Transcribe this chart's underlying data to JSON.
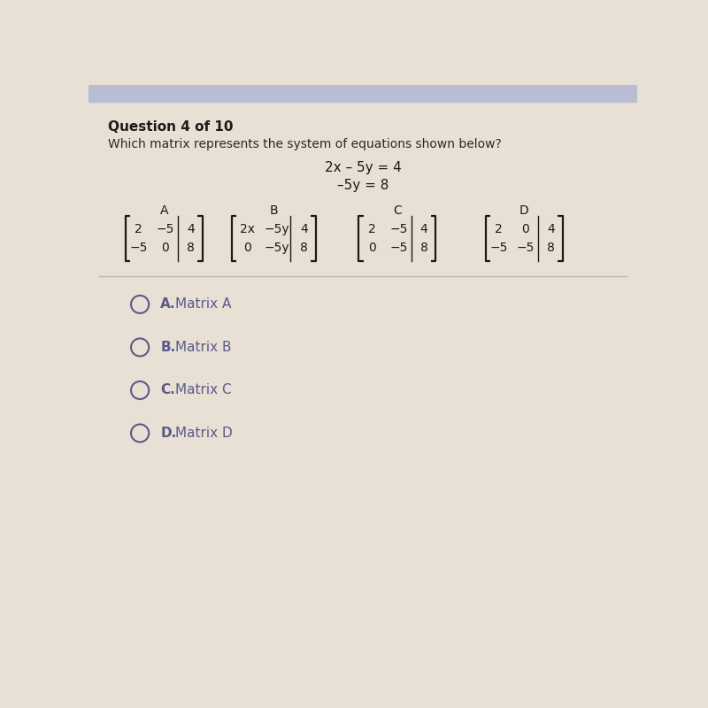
{
  "bg_color": "#e8e0d4",
  "top_bar_color": "#b8bdd4",
  "title": "Question 4 of 10",
  "question": "Which matrix represents the system of equations shown below?",
  "eq1": "2x – 5y = 4",
  "eq2": "–5y = 8",
  "matrix_labels": [
    "A",
    "B",
    "C",
    "D"
  ],
  "matrix_A_row1": [
    "2",
    "−5",
    "4"
  ],
  "matrix_A_row2": [
    "−5",
    "0",
    "8"
  ],
  "matrix_B_row1": [
    "2x",
    "−5y",
    "4"
  ],
  "matrix_B_row2": [
    "0",
    "−5y",
    "8"
  ],
  "matrix_C_row1": [
    "2",
    "−5",
    "4"
  ],
  "matrix_C_row2": [
    "0",
    "−5",
    "8"
  ],
  "matrix_D_row1": [
    "2",
    "0",
    "4"
  ],
  "matrix_D_row2": [
    "−5",
    "−5",
    "8"
  ],
  "choices": [
    "A",
    "B",
    "C",
    "D"
  ],
  "title_color": "#1a1a1a",
  "question_color": "#2a2a2a",
  "equation_color": "#1a1a1a",
  "matrix_color": "#1a1a1a",
  "choice_color": "#5a5a8a",
  "bracket_color": "#1a1a1a",
  "divider_color": "#c0b8a8",
  "title_fontsize": 11,
  "question_fontsize": 10,
  "eq_fontsize": 11,
  "matrix_label_fontsize": 10,
  "matrix_fontsize": 10,
  "choice_fontsize": 11
}
